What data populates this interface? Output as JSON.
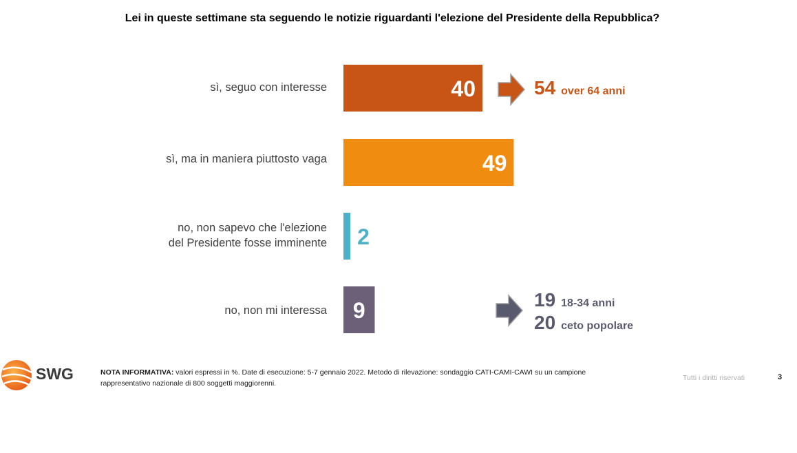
{
  "chart_data": {
    "type": "bar",
    "orientation": "horizontal",
    "title": "Lei in queste settimane sta seguendo le notizie riguardanti l'elezione del Presidente della Repubblica?",
    "categories": [
      "sì, seguo con interesse",
      "sì, ma in maniera piuttosto vaga",
      "no, non sapevo che l'elezione del Presidente fosse imminente",
      "no, non mi interessa"
    ],
    "values": [
      40,
      49,
      2,
      9
    ],
    "value_labels": [
      "40",
      "49",
      "2",
      "9"
    ],
    "colors": [
      "#c85516",
      "#f08c10",
      "#4fb1c8",
      "#6b6078"
    ],
    "xlim": [
      0,
      100
    ],
    "grid": false
  },
  "labels": {
    "cat0": "sì, seguo con interesse",
    "cat1": "sì, ma in maniera piuttosto vaga",
    "cat2_line1": "no, non sapevo che l'elezione",
    "cat2_line2": "del Presidente fosse imminente",
    "cat3": "no, non mi interessa"
  },
  "annotations": {
    "a1_value": "54",
    "a1_text": "over 64 anni",
    "a1_color": "#c85516",
    "a2_value": "19",
    "a2_text": "18-34 anni",
    "a3_value": "20",
    "a3_text": "ceto popolare",
    "a23_color": "#5a5a6e"
  },
  "logo": {
    "text": "SWG",
    "icon": "swg-globe-logo-icon"
  },
  "footer": {
    "note_label": "NOTA INFORMATIVA:",
    "note_text": " valori espressi in %. Date di esecuzione: 5-7 gennaio 2022. Metodo di rilevazione: sondaggio CATI-CAMI-CAWI su un campione rappresentativo nazionale di 800 soggetti maggiorenni.",
    "rights": "Tutti i diritti riservati",
    "page_number": "3"
  }
}
